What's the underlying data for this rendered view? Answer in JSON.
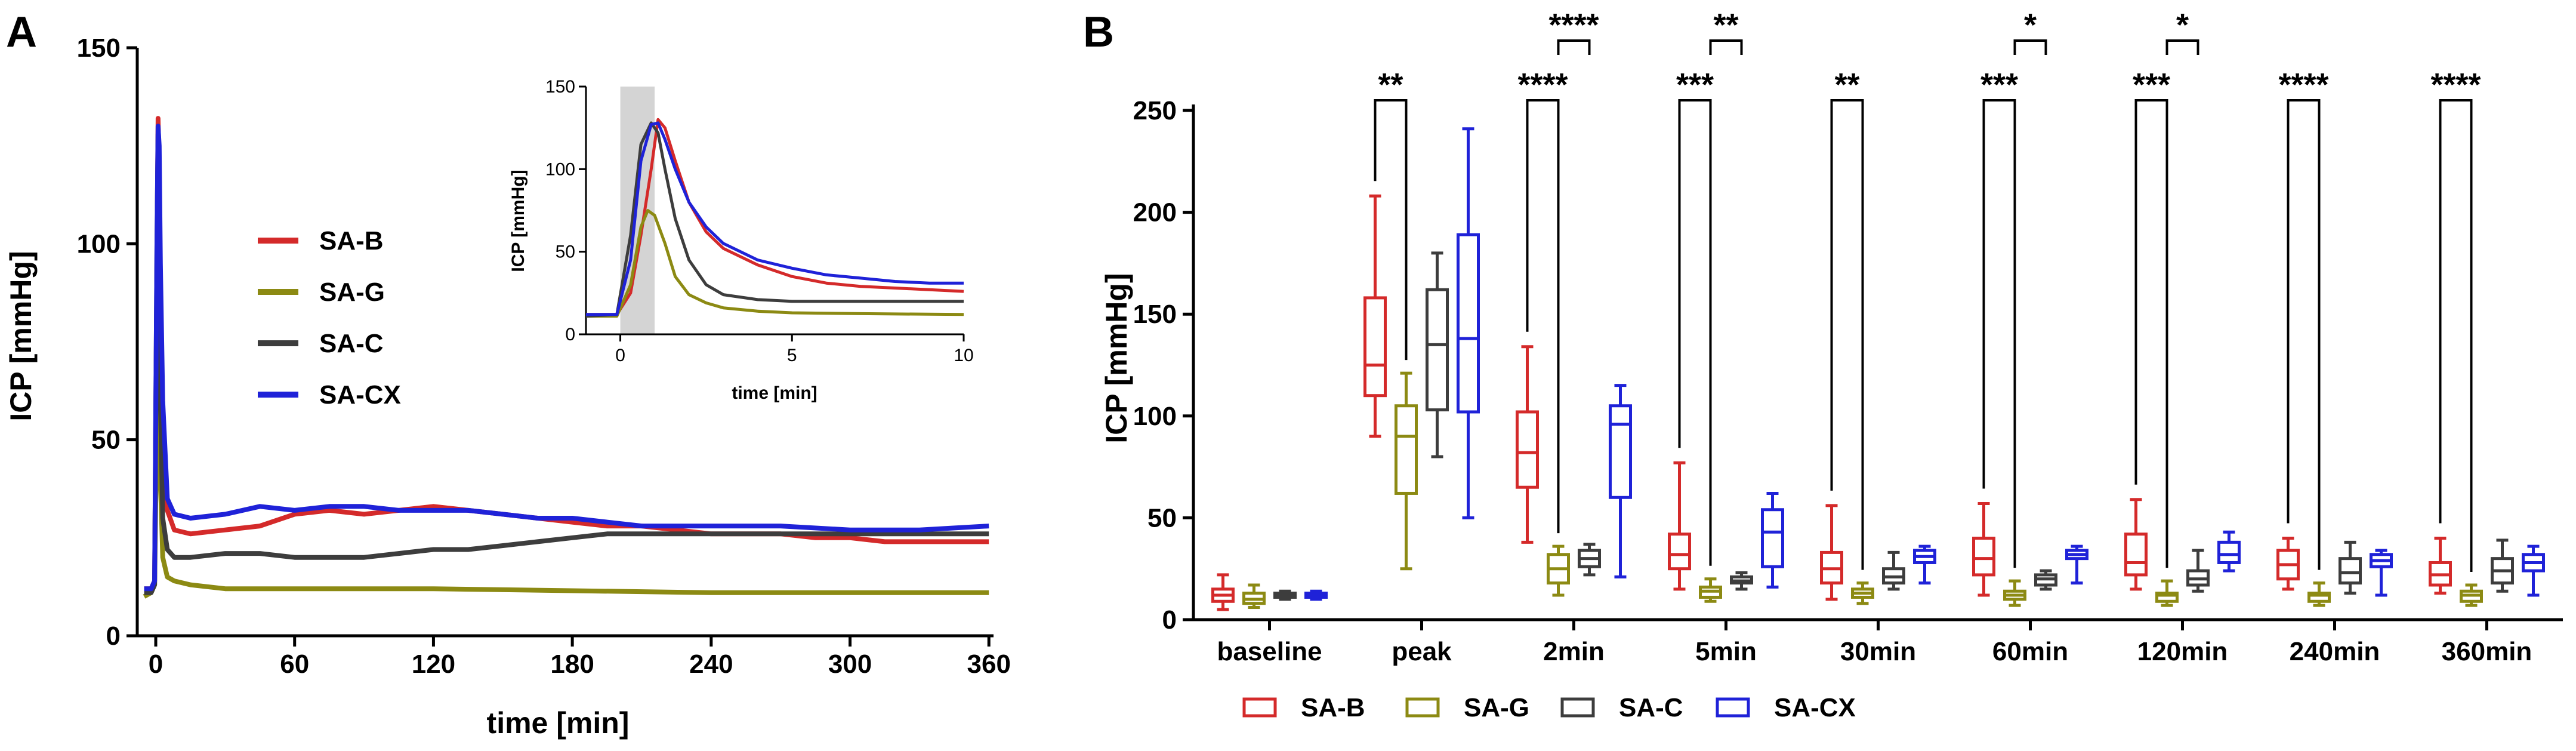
{
  "panels": {
    "a": "A",
    "b": "B"
  },
  "colors": {
    "SA-B": "#d42a2a",
    "SA-G": "#8c8a13",
    "SA-C": "#3d3d3d",
    "SA-CX": "#1f22d8"
  },
  "chart_data": [
    {
      "type": "line",
      "id": "A-main",
      "xlabel": "time [min]",
      "ylabel": "ICP [mmHg]",
      "xlim": [
        -8,
        362
      ],
      "ylim": [
        0,
        150
      ],
      "xticks": [
        0,
        60,
        120,
        180,
        240,
        300,
        360
      ],
      "yticks": [
        0,
        50,
        100,
        150
      ],
      "legend_position": "upper-left",
      "legend": [
        "SA-B",
        "SA-G",
        "SA-C",
        "SA-CX"
      ],
      "series": [
        {
          "name": "SA-B",
          "color": "#d42a2a",
          "x": [
            -5,
            -2,
            -0.5,
            0.5,
            1,
            1.5,
            2,
            3,
            5,
            8,
            15,
            30,
            45,
            60,
            75,
            90,
            105,
            120,
            135,
            150,
            165,
            180,
            195,
            210,
            225,
            240,
            255,
            270,
            285,
            300,
            315,
            330,
            345,
            360
          ],
          "y": [
            12,
            12,
            14,
            95,
            132,
            120,
            85,
            55,
            32,
            27,
            26,
            27,
            28,
            31,
            32,
            31,
            32,
            33,
            32,
            31,
            30,
            29,
            28,
            28,
            27,
            26,
            26,
            26,
            25,
            25,
            24,
            24,
            24,
            24
          ]
        },
        {
          "name": "SA-G",
          "color": "#8c8a13",
          "x": [
            -5,
            -2,
            -0.5,
            0.5,
            1,
            1.5,
            2,
            3,
            5,
            8,
            15,
            30,
            60,
            120,
            180,
            240,
            300,
            360
          ],
          "y": [
            10,
            11,
            13,
            55,
            73,
            70,
            40,
            20,
            15,
            14,
            13,
            12,
            12,
            12,
            11.5,
            11,
            11,
            11
          ]
        },
        {
          "name": "SA-C",
          "color": "#3d3d3d",
          "x": [
            -5,
            -2,
            -0.5,
            0.5,
            1,
            1.5,
            2,
            3,
            5,
            8,
            15,
            30,
            45,
            60,
            75,
            90,
            105,
            120,
            135,
            150,
            165,
            180,
            195,
            210,
            225,
            240,
            270,
            300,
            330,
            360
          ],
          "y": [
            11,
            11,
            13,
            100,
            128,
            110,
            60,
            30,
            22,
            20,
            20,
            21,
            21,
            20,
            20,
            20,
            21,
            22,
            22,
            23,
            24,
            25,
            26,
            26,
            26,
            26,
            26,
            26,
            26,
            26
          ]
        },
        {
          "name": "SA-CX",
          "color": "#1f22d8",
          "x": [
            -5,
            -2,
            -0.5,
            0.5,
            1,
            1.5,
            2,
            3,
            5,
            8,
            15,
            30,
            45,
            60,
            75,
            90,
            105,
            120,
            135,
            150,
            165,
            180,
            195,
            210,
            225,
            240,
            270,
            300,
            330,
            360
          ],
          "y": [
            12,
            12,
            14,
            100,
            130,
            125,
            95,
            60,
            35,
            31,
            30,
            31,
            33,
            32,
            33,
            33,
            32,
            32,
            32,
            31,
            30,
            30,
            29,
            28,
            28,
            28,
            28,
            27,
            27,
            28
          ]
        }
      ]
    },
    {
      "type": "line",
      "id": "A-inset",
      "xlabel": "time [min]",
      "ylabel": "ICP [mmHg]",
      "xlim": [
        -1,
        10
      ],
      "ylim": [
        0,
        150
      ],
      "xticks": [
        0,
        5,
        10
      ],
      "yticks": [
        0,
        50,
        100,
        150
      ],
      "shaded_x_range": [
        0,
        1
      ],
      "series": [
        {
          "name": "SA-B",
          "color": "#d42a2a",
          "x": [
            -1,
            -0.1,
            0.3,
            0.6,
            0.9,
            1.1,
            1.3,
            1.6,
            2,
            2.5,
            3,
            4,
            5,
            6,
            7,
            8,
            9,
            10
          ],
          "y": [
            12,
            12,
            25,
            60,
            100,
            130,
            125,
            105,
            80,
            62,
            52,
            42,
            35,
            31,
            29,
            28,
            27,
            26
          ]
        },
        {
          "name": "SA-G",
          "color": "#8c8a13",
          "x": [
            -1,
            -0.1,
            0.3,
            0.6,
            0.8,
            1.0,
            1.3,
            1.6,
            2,
            2.5,
            3,
            4,
            5,
            7,
            10
          ],
          "y": [
            11,
            11,
            30,
            65,
            75,
            72,
            55,
            35,
            24,
            19,
            16,
            14,
            13,
            12.5,
            12
          ]
        },
        {
          "name": "SA-C",
          "color": "#3d3d3d",
          "x": [
            -1,
            -0.1,
            0.3,
            0.6,
            0.9,
            1.1,
            1.3,
            1.6,
            2,
            2.5,
            3,
            4,
            5,
            7,
            10
          ],
          "y": [
            11,
            12,
            60,
            115,
            128,
            122,
            100,
            70,
            45,
            30,
            24,
            21,
            20,
            20,
            20
          ]
        },
        {
          "name": "SA-CX",
          "color": "#1f22d8",
          "x": [
            -1,
            -0.1,
            0.3,
            0.6,
            0.9,
            1.1,
            1.3,
            1.6,
            2,
            2.5,
            3,
            4,
            5,
            6,
            7,
            8,
            9,
            10
          ],
          "y": [
            12,
            12,
            45,
            105,
            127,
            128,
            118,
            100,
            80,
            65,
            55,
            45,
            40,
            36,
            34,
            32,
            31,
            31
          ]
        }
      ]
    },
    {
      "type": "box",
      "id": "B",
      "ylabel": "ICP [mmHg]",
      "ylim": [
        0,
        250
      ],
      "yticks": [
        0,
        50,
        100,
        150,
        200,
        250
      ],
      "categories": [
        "baseline",
        "peak",
        "2min",
        "5min",
        "30min",
        "60min",
        "120min",
        "240min",
        "360min"
      ],
      "legend": [
        "SA-B",
        "SA-G",
        "SA-C",
        "SA-CX"
      ],
      "legend_position": "bottom",
      "series": [
        {
          "name": "SA-B",
          "color": "#d42a2a",
          "boxes": [
            [
              5,
              9,
              12,
              15,
              22
            ],
            [
              90,
              110,
              125,
              158,
              208
            ],
            [
              38,
              65,
              82,
              102,
              134
            ],
            [
              15,
              25,
              32,
              42,
              77
            ],
            [
              10,
              18,
              25,
              33,
              56
            ],
            [
              12,
              22,
              30,
              40,
              57
            ],
            [
              15,
              22,
              28,
              42,
              59
            ],
            [
              15,
              20,
              27,
              34,
              40
            ],
            [
              13,
              17,
              22,
              28,
              40
            ]
          ]
        },
        {
          "name": "SA-G",
          "color": "#8c8a13",
          "boxes": [
            [
              6,
              8,
              10,
              13,
              17
            ],
            [
              25,
              62,
              90,
              105,
              121
            ],
            [
              12,
              18,
              25,
              32,
              36
            ],
            [
              9,
              11,
              14,
              16,
              20
            ],
            [
              8,
              11,
              13,
              15,
              18
            ],
            [
              7,
              10,
              12,
              14,
              19
            ],
            [
              7,
              9,
              12,
              13,
              19
            ],
            [
              7,
              9,
              12,
              13,
              18
            ],
            [
              7,
              9,
              12,
              14,
              17
            ]
          ]
        },
        {
          "name": "SA-C",
          "color": "#3d3d3d",
          "boxes": [
            [
              10,
              11,
              12,
              13,
              14
            ],
            [
              80,
              103,
              135,
              162,
              180
            ],
            [
              22,
              26,
              30,
              34,
              37
            ],
            [
              15,
              18,
              19,
              21,
              23
            ],
            [
              15,
              18,
              21,
              25,
              33
            ],
            [
              15,
              17,
              20,
              22,
              24
            ],
            [
              14,
              17,
              20,
              24,
              34
            ],
            [
              13,
              18,
              23,
              30,
              38
            ],
            [
              14,
              18,
              24,
              30,
              39
            ]
          ]
        },
        {
          "name": "SA-CX",
          "color": "#1f22d8",
          "boxes": [
            [
              10,
              11,
              12,
              13,
              14
            ],
            [
              50,
              102,
              138,
              189,
              241
            ],
            [
              21,
              60,
              96,
              105,
              115
            ],
            [
              16,
              26,
              43,
              54,
              62
            ],
            [
              18,
              28,
              31,
              34,
              36
            ],
            [
              18,
              30,
              32,
              34,
              36
            ],
            [
              24,
              28,
              32,
              38,
              43
            ],
            [
              12,
              26,
              29,
              32,
              34
            ],
            [
              12,
              24,
              28,
              32,
              36
            ]
          ]
        }
      ],
      "significance": [
        {
          "category": "peak",
          "pair": [
            "SA-B",
            "SA-G"
          ],
          "label": "**",
          "level": 1
        },
        {
          "category": "2min",
          "pair": [
            "SA-B",
            "SA-G"
          ],
          "label": "****",
          "level": 1
        },
        {
          "category": "2min",
          "pair": [
            "SA-G",
            "SA-C"
          ],
          "label": "****",
          "level": 2
        },
        {
          "category": "5min",
          "pair": [
            "SA-B",
            "SA-G"
          ],
          "label": "***",
          "level": 1
        },
        {
          "category": "5min",
          "pair": [
            "SA-G",
            "SA-C"
          ],
          "label": "**",
          "level": 2
        },
        {
          "category": "30min",
          "pair": [
            "SA-B",
            "SA-G"
          ],
          "label": "**",
          "level": 1
        },
        {
          "category": "60min",
          "pair": [
            "SA-B",
            "SA-G"
          ],
          "label": "***",
          "level": 1
        },
        {
          "category": "60min",
          "pair": [
            "SA-G",
            "SA-C"
          ],
          "label": "*",
          "level": 2
        },
        {
          "category": "120min",
          "pair": [
            "SA-B",
            "SA-G"
          ],
          "label": "***",
          "level": 1
        },
        {
          "category": "120min",
          "pair": [
            "SA-G",
            "SA-C"
          ],
          "label": "*",
          "level": 2
        },
        {
          "category": "240min",
          "pair": [
            "SA-B",
            "SA-G"
          ],
          "label": "****",
          "level": 1
        },
        {
          "category": "360min",
          "pair": [
            "SA-B",
            "SA-G"
          ],
          "label": "****",
          "level": 1
        }
      ]
    }
  ]
}
